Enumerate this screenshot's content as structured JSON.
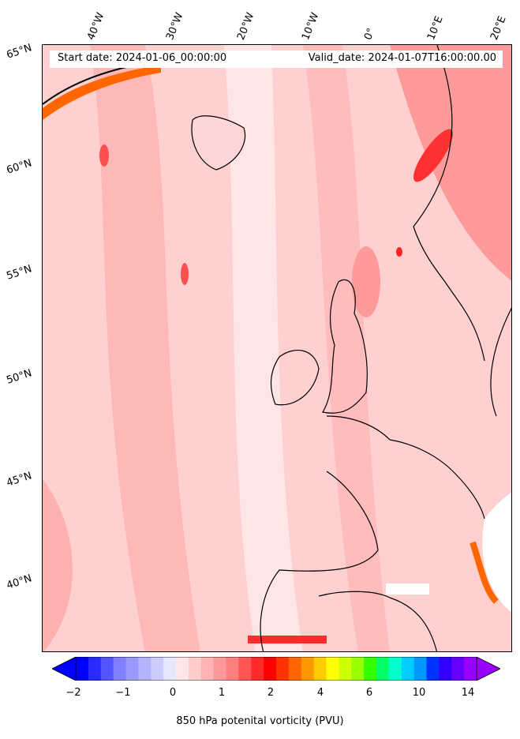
{
  "header": {
    "start_date": "Start date: 2024-01-06_00:00:00",
    "valid_date": "Valid_date: 2024-01-07T16:00:00.00"
  },
  "axes": {
    "longitude_labels": [
      "40°W",
      "30°W",
      "20°W",
      "10°W",
      "0°",
      "10°E",
      "20°E"
    ],
    "latitude_labels": [
      "65°N",
      "60°N",
      "55°N",
      "50°N",
      "45°N",
      "40°N"
    ]
  },
  "colorbar": {
    "title": "850 hPa potenital vorticity (PVU)",
    "tick_labels": [
      "−2",
      "−1",
      "0",
      "1",
      "2",
      "4",
      "6",
      "10",
      "14"
    ],
    "colors": [
      "#0000ff",
      "#2a2aff",
      "#5555ff",
      "#7f7fff",
      "#9999ff",
      "#b3b3ff",
      "#ccccff",
      "#e6e6ff",
      "#ffe6e6",
      "#ffcccc",
      "#ffb3b3",
      "#ff9999",
      "#ff7f7f",
      "#ff5555",
      "#ff2a2a",
      "#ff0000",
      "#ff3300",
      "#ff6600",
      "#ff9900",
      "#ffcc00",
      "#ffff00",
      "#ccff00",
      "#99ff00",
      "#33ff00",
      "#00ff66",
      "#00ffcc",
      "#00ccff",
      "#0099ff",
      "#0033ff",
      "#3300ff",
      "#6600ff",
      "#9900ff"
    ],
    "extend": "both"
  }
}
